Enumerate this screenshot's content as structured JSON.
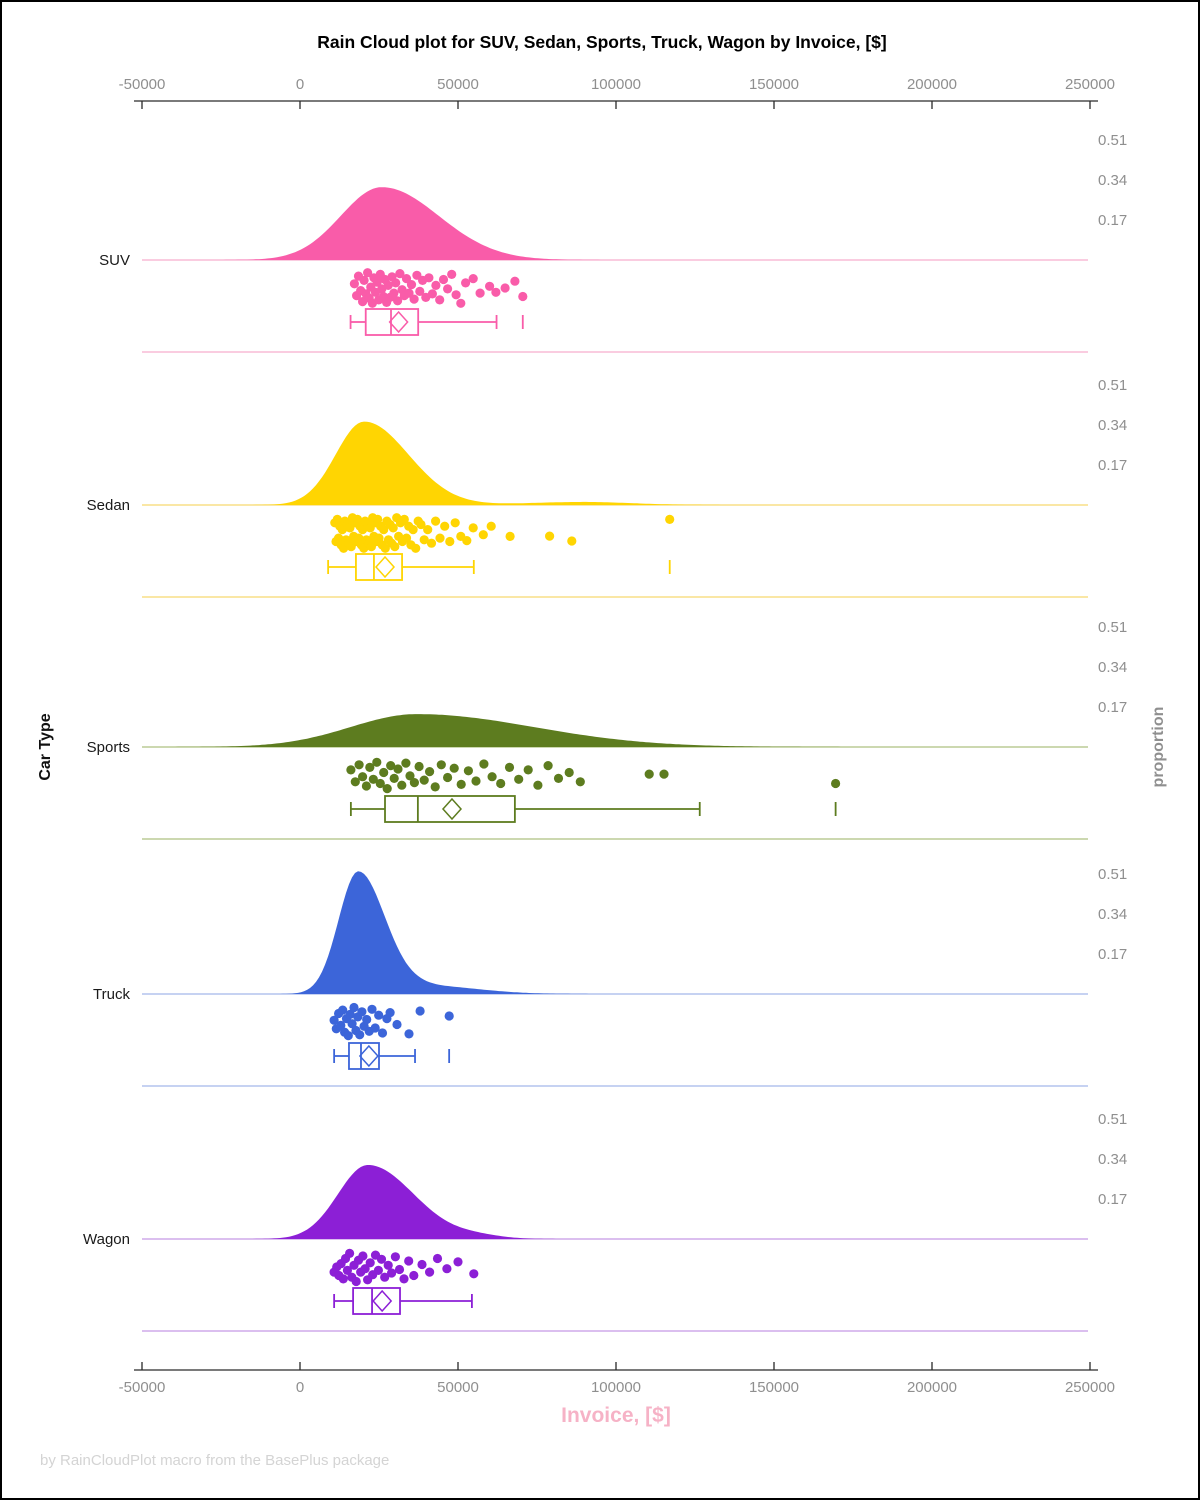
{
  "title": "Rain Cloud plot for SUV, Sedan, Sports, Truck, Wagon by Invoice, [$]",
  "footnote": "by RainCloudPlot macro from the BasePlus package",
  "axes": {
    "x_label": "Invoice, [$]",
    "x_label_color": "#f6b2c6",
    "y_label": "Car Type",
    "right_label": "proportion",
    "x_ticks": [
      -50000,
      0,
      50000,
      100000,
      150000,
      200000,
      250000
    ],
    "x_tick_labels": [
      "-50000",
      "0",
      "50000",
      "100000",
      "150000",
      "200000",
      "250000"
    ],
    "proportion_tick_labels": [
      "0.51",
      "0.34",
      "0.17"
    ],
    "proportion_tick_values": [
      0.51,
      0.34,
      0.17
    ],
    "tick_text_color": "#8f8f8f",
    "axis_line_color": "#2a2a2a"
  },
  "chart_data": {
    "type": "raincloud (half-violin density + jittered strip points + horizontal box plot, one panel per category)",
    "x_range": [
      -50000,
      250000
    ],
    "grid": false,
    "categories": [
      "SUV",
      "Sedan",
      "Sports",
      "Truck",
      "Wagon"
    ],
    "series": [
      {
        "name": "SUV",
        "color": "#f95ca9",
        "light_color": "#f9bcd6",
        "density_components": [
          {
            "mu": 25900,
            "sd_left": 13000,
            "sd_right": 18000,
            "height": 0.31
          }
        ],
        "box": {
          "whisker_low": 16000,
          "q1": 20800,
          "median": 28800,
          "q3": 37400,
          "whisker_high": 62200,
          "mean": 31200,
          "outliers": [
            70500
          ]
        },
        "points": [
          [
            17200,
            -0.25
          ],
          [
            17900,
            0.45
          ],
          [
            18500,
            -0.7
          ],
          [
            19200,
            0.15
          ],
          [
            19800,
            0.8
          ],
          [
            20300,
            -0.45
          ],
          [
            20900,
            0.35
          ],
          [
            21400,
            -0.9
          ],
          [
            21900,
            0.6
          ],
          [
            22400,
            -0.05
          ],
          [
            22900,
            0.9
          ],
          [
            23400,
            -0.6
          ],
          [
            23900,
            0.25
          ],
          [
            24400,
            -0.35
          ],
          [
            24900,
            0.7
          ],
          [
            25400,
            -0.8
          ],
          [
            25900,
            0.05
          ],
          [
            26400,
            0.5
          ],
          [
            26900,
            -0.5
          ],
          [
            27400,
            0.85
          ],
          [
            27900,
            -0.15
          ],
          [
            28500,
            0.55
          ],
          [
            29100,
            -0.65
          ],
          [
            29700,
            0.3
          ],
          [
            30300,
            -0.3
          ],
          [
            30900,
            0.75
          ],
          [
            31600,
            -0.85
          ],
          [
            32300,
            0.1
          ],
          [
            33000,
            0.45
          ],
          [
            33700,
            -0.55
          ],
          [
            34500,
            0.3
          ],
          [
            35300,
            -0.2
          ],
          [
            36100,
            0.65
          ],
          [
            37000,
            -0.75
          ],
          [
            37900,
            0.2
          ],
          [
            38800,
            -0.45
          ],
          [
            39800,
            0.55
          ],
          [
            40800,
            -0.6
          ],
          [
            41900,
            0.35
          ],
          [
            43000,
            -0.15
          ],
          [
            44200,
            0.7
          ],
          [
            45400,
            -0.5
          ],
          [
            46700,
            0.05
          ],
          [
            48000,
            -0.8
          ],
          [
            49400,
            0.4
          ],
          [
            50900,
            0.9
          ],
          [
            52400,
            -0.3
          ],
          [
            54800,
            -0.55
          ],
          [
            57000,
            0.3
          ],
          [
            60000,
            -0.1
          ],
          [
            62000,
            0.25
          ],
          [
            64900,
            0.0
          ],
          [
            68000,
            -0.4
          ],
          [
            70500,
            0.5
          ]
        ]
      },
      {
        "name": "Sedan",
        "color": "#ffd502",
        "light_color": "#f8df87",
        "density_components": [
          {
            "mu": 20300,
            "sd_left": 9000,
            "sd_right": 14000,
            "height": 0.355
          },
          {
            "mu": 90000,
            "sd_left": 18000,
            "sd_right": 15000,
            "height": 0.013
          }
        ],
        "box": {
          "whisker_low": 8900,
          "q1": 17700,
          "median": 23400,
          "q3": 32300,
          "whisker_high": 55000,
          "mean": 26900,
          "outliers": [
            117000
          ]
        },
        "points": [
          [
            11000,
            -0.6
          ],
          [
            11400,
            0.5
          ],
          [
            11800,
            -0.8
          ],
          [
            12200,
            0.3
          ],
          [
            12600,
            -0.4
          ],
          [
            13000,
            0.7
          ],
          [
            13400,
            -0.2
          ],
          [
            13800,
            0.9
          ],
          [
            14200,
            -0.7
          ],
          [
            14600,
            0.4
          ],
          [
            15000,
            -0.5
          ],
          [
            15400,
            0.6
          ],
          [
            15800,
            -0.3
          ],
          [
            16200,
            0.8
          ],
          [
            16600,
            -0.9
          ],
          [
            17000,
            0.2
          ],
          [
            17400,
            -0.6
          ],
          [
            17800,
            0.5
          ],
          [
            18200,
            -0.8
          ],
          [
            18600,
            0.3
          ],
          [
            19000,
            -0.4
          ],
          [
            19400,
            0.7
          ],
          [
            19800,
            -0.2
          ],
          [
            20200,
            0.9
          ],
          [
            20600,
            -0.7
          ],
          [
            21000,
            0.4
          ],
          [
            21400,
            -0.5
          ],
          [
            21800,
            0.6
          ],
          [
            22200,
            -0.3
          ],
          [
            22600,
            0.8
          ],
          [
            23000,
            -0.9
          ],
          [
            23400,
            0.2
          ],
          [
            23800,
            -0.6
          ],
          [
            24200,
            0.5
          ],
          [
            24600,
            -0.8
          ],
          [
            25000,
            0.3
          ],
          [
            25500,
            -0.4
          ],
          [
            26000,
            0.7
          ],
          [
            26500,
            -0.2
          ],
          [
            27000,
            0.9
          ],
          [
            27500,
            -0.7
          ],
          [
            28000,
            0.4
          ],
          [
            28500,
            -0.5
          ],
          [
            29000,
            0.6
          ],
          [
            29500,
            -0.3
          ],
          [
            30000,
            0.8
          ],
          [
            30600,
            -0.9
          ],
          [
            31200,
            0.2
          ],
          [
            31800,
            -0.6
          ],
          [
            32400,
            0.5
          ],
          [
            33000,
            -0.8
          ],
          [
            33700,
            0.3
          ],
          [
            34400,
            -0.4
          ],
          [
            35100,
            0.7
          ],
          [
            35800,
            -0.2
          ],
          [
            36600,
            0.9
          ],
          [
            37400,
            -0.7
          ],
          [
            38300,
            -0.5
          ],
          [
            39300,
            0.4
          ],
          [
            40400,
            -0.2
          ],
          [
            41600,
            0.6
          ],
          [
            42900,
            -0.7
          ],
          [
            44300,
            0.3
          ],
          [
            45800,
            -0.4
          ],
          [
            47400,
            0.5
          ],
          [
            49100,
            -0.6
          ],
          [
            50900,
            0.2
          ],
          [
            52800,
            0.45
          ],
          [
            54800,
            -0.3
          ],
          [
            58000,
            0.1
          ],
          [
            60500,
            -0.4
          ],
          [
            66500,
            0.2
          ],
          [
            79000,
            0.18
          ],
          [
            86000,
            0.47
          ],
          [
            117000,
            -0.8
          ]
        ]
      },
      {
        "name": "Sports",
        "color": "#5d7c1f",
        "light_color": "#bccc96",
        "density_components": [
          {
            "mu": 37000,
            "sd_left": 21000,
            "sd_right": 37000,
            "height": 0.14
          }
        ],
        "box": {
          "whisker_low": 16100,
          "q1": 26900,
          "median": 37300,
          "q3": 68000,
          "whisker_high": 126500,
          "mean": 48100,
          "outliers": [
            169500
          ]
        },
        "points": [
          [
            16100,
            -0.3
          ],
          [
            17500,
            0.4
          ],
          [
            18700,
            -0.6
          ],
          [
            19800,
            0.1
          ],
          [
            21000,
            0.65
          ],
          [
            22100,
            -0.45
          ],
          [
            23200,
            0.25
          ],
          [
            24300,
            -0.75
          ],
          [
            25400,
            0.5
          ],
          [
            26500,
            -0.15
          ],
          [
            27600,
            0.8
          ],
          [
            28700,
            -0.55
          ],
          [
            29800,
            0.2
          ],
          [
            31000,
            -0.35
          ],
          [
            32200,
            0.6
          ],
          [
            33500,
            -0.7
          ],
          [
            34800,
            0.05
          ],
          [
            36200,
            0.45
          ],
          [
            37700,
            -0.5
          ],
          [
            39300,
            0.3
          ],
          [
            41000,
            -0.2
          ],
          [
            42800,
            0.7
          ],
          [
            44700,
            -0.6
          ],
          [
            46700,
            0.15
          ],
          [
            48800,
            -0.4
          ],
          [
            51000,
            0.55
          ],
          [
            53300,
            -0.25
          ],
          [
            55700,
            0.35
          ],
          [
            58200,
            -0.65
          ],
          [
            60800,
            0.1
          ],
          [
            63500,
            0.5
          ],
          [
            66300,
            -0.45
          ],
          [
            69200,
            0.25
          ],
          [
            72200,
            -0.3
          ],
          [
            75300,
            0.6
          ],
          [
            78500,
            -0.55
          ],
          [
            81800,
            0.2
          ],
          [
            85200,
            -0.15
          ],
          [
            88700,
            0.4
          ],
          [
            110500,
            -0.05
          ],
          [
            115200,
            -0.05
          ],
          [
            169500,
            0.5
          ]
        ]
      },
      {
        "name": "Truck",
        "color": "#3c65d9",
        "light_color": "#b3c4ee",
        "density_components": [
          {
            "mu": 18400,
            "sd_left": 6200,
            "sd_right": 8500,
            "height": 0.52
          },
          {
            "mu": 40000,
            "sd_left": 9000,
            "sd_right": 16000,
            "height": 0.035
          }
        ],
        "box": {
          "whisker_low": 10800,
          "q1": 15500,
          "median": 19300,
          "q3": 25000,
          "whisker_high": 36400,
          "mean": 21800,
          "outliers": [
            47200
          ]
        },
        "points": [
          [
            10800,
            -0.1
          ],
          [
            11500,
            0.4
          ],
          [
            12200,
            -0.5
          ],
          [
            12900,
            0.2
          ],
          [
            13500,
            -0.7
          ],
          [
            14100,
            0.6
          ],
          [
            14700,
            -0.2
          ],
          [
            15300,
            0.8
          ],
          [
            15900,
            -0.45
          ],
          [
            16500,
            0.1
          ],
          [
            17100,
            -0.85
          ],
          [
            17700,
            0.5
          ],
          [
            18300,
            -0.3
          ],
          [
            18900,
            0.75
          ],
          [
            19600,
            -0.6
          ],
          [
            20300,
            0.25
          ],
          [
            21100,
            -0.15
          ],
          [
            21900,
            0.55
          ],
          [
            22800,
            -0.75
          ],
          [
            23800,
            0.35
          ],
          [
            24900,
            -0.4
          ],
          [
            26100,
            0.65
          ],
          [
            27500,
            -0.2
          ],
          [
            28500,
            -0.55
          ],
          [
            30700,
            0.15
          ],
          [
            34500,
            0.7
          ],
          [
            38000,
            -0.65
          ],
          [
            47200,
            -0.35
          ]
        ]
      },
      {
        "name": "Wagon",
        "color": "#8c1fd6",
        "light_color": "#cfaaea",
        "density_components": [
          {
            "mu": 21500,
            "sd_left": 9500,
            "sd_right": 14500,
            "height": 0.315
          },
          {
            "mu": 56000,
            "sd_left": 7000,
            "sd_right": 8000,
            "height": 0.012
          }
        ],
        "box": {
          "whisker_low": 10800,
          "q1": 16800,
          "median": 22800,
          "q3": 31650,
          "whisker_high": 54400,
          "mean": 26000,
          "outliers": []
        },
        "points": [
          [
            10800,
            0.3
          ],
          [
            11600,
            0.0
          ],
          [
            12300,
            0.5
          ],
          [
            13000,
            -0.2
          ],
          [
            13700,
            0.7
          ],
          [
            14400,
            -0.5
          ],
          [
            15000,
            0.2
          ],
          [
            15700,
            -0.8
          ],
          [
            16400,
            0.6
          ],
          [
            17100,
            -0.1
          ],
          [
            17800,
            0.85
          ],
          [
            18500,
            -0.4
          ],
          [
            19200,
            0.3
          ],
          [
            19900,
            -0.65
          ],
          [
            20600,
            0.1
          ],
          [
            21400,
            0.75
          ],
          [
            22200,
            -0.25
          ],
          [
            23000,
            0.45
          ],
          [
            23900,
            -0.7
          ],
          [
            24800,
            0.2
          ],
          [
            25800,
            -0.45
          ],
          [
            26800,
            0.6
          ],
          [
            27900,
            -0.1
          ],
          [
            29000,
            0.35
          ],
          [
            30200,
            -0.6
          ],
          [
            31500,
            0.15
          ],
          [
            32900,
            0.7
          ],
          [
            34400,
            -0.35
          ],
          [
            36000,
            0.5
          ],
          [
            38600,
            -0.15
          ],
          [
            41000,
            0.3
          ],
          [
            43500,
            -0.5
          ],
          [
            46500,
            0.1
          ],
          [
            50000,
            -0.3
          ],
          [
            55000,
            0.4
          ]
        ]
      }
    ]
  }
}
